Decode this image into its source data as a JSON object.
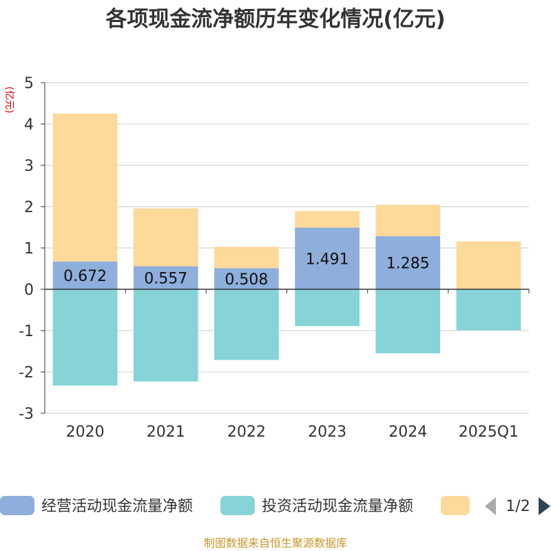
{
  "chart_data": {
    "type": "bar",
    "stacked": true,
    "title": "各项现金流净额历年变化情况(亿元)",
    "ylabel": "(亿元)",
    "categories": [
      "2020",
      "2021",
      "2022",
      "2023",
      "2024",
      "2025Q1"
    ],
    "ylim": [
      -3,
      5
    ],
    "yticks": [
      5,
      4,
      3,
      2,
      1,
      0,
      -1,
      -2,
      -3
    ],
    "grid": true,
    "series": [
      {
        "name": "经营活动现金流量净额",
        "color": "#8eaedb",
        "values": [
          0.672,
          0.557,
          0.508,
          1.491,
          1.285,
          -0.01
        ],
        "labels": [
          "0.672",
          "0.557",
          "0.508",
          "1.491",
          "1.285",
          ""
        ]
      },
      {
        "name": "投资活动现金流量净额",
        "color": "#86d4d8",
        "values": [
          -2.33,
          -2.23,
          -1.71,
          -0.89,
          -1.55,
          -0.98
        ]
      },
      {
        "name": "",
        "color": "#fdd99a",
        "values": [
          3.58,
          1.4,
          0.52,
          0.4,
          0.76,
          1.16
        ]
      }
    ],
    "legend": {
      "placement": "bottom",
      "page": "1/2"
    }
  },
  "source": "制图数据来自恒生聚源数据库"
}
